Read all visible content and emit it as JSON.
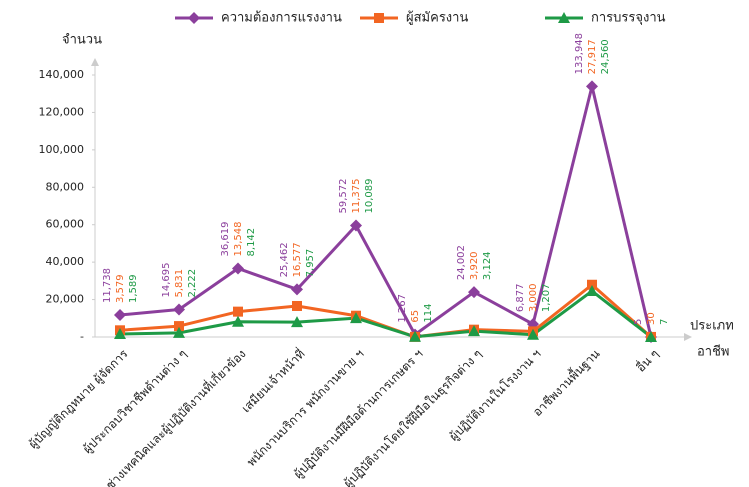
{
  "chart_data": {
    "type": "line",
    "y_label": "จำนวน",
    "x_label_lines": [
      "ประเภท",
      "อาชีพ"
    ],
    "categories": [
      "ผู้บัญญัติกฎหมาย ผู้จัดการ",
      "ผู้ประกอบวิชาชีพด้านต่าง ๆ",
      "ช่างเทคนิคและผู้ปฏิบัติงานที่เกี่ยวข้อง",
      "เสมียนเจ้าหน้าที่",
      "พนักงานบริการ พนักงานขาย ฯ",
      "ผู้ปฏิบัติงานมีฝีมือด้านการเกษตร ฯ",
      "ผู้ปฏิบัติงานโดยใช้ฝีมือในธุรกิจต่าง ๆ",
      "ผู้ปฏิบัติงานในโรงงาน ฯ",
      "อาชีพงานพื้นฐาน",
      "อื่น ๆ"
    ],
    "series": [
      {
        "name": "ความต้องการแรงงาน",
        "color": "#8b3f9c",
        "marker": "diamond",
        "values": [
          11738,
          14695,
          36619,
          25462,
          59572,
          1267,
          24002,
          6877,
          133948,
          5
        ],
        "value_labels": [
          "11,738",
          "14,695",
          "36,619",
          "25,462",
          "59,572",
          "1,267",
          "24,002",
          "6,877",
          "133,948",
          "5"
        ]
      },
      {
        "name": "ผู้สมัครงาน",
        "color": "#f26522",
        "marker": "square",
        "values": [
          3579,
          5831,
          13548,
          16577,
          11375,
          65,
          3920,
          3000,
          27917,
          30
        ],
        "value_labels": [
          "3,579",
          "5,831",
          "13,548",
          "16,577",
          "11,375",
          "65",
          "3,920",
          "3,000",
          "27,917",
          "30"
        ]
      },
      {
        "name": "การบรรจุงาน",
        "color": "#1e9a46",
        "marker": "triangle",
        "values": [
          1589,
          2222,
          8142,
          7957,
          10089,
          114,
          3124,
          1207,
          24560,
          7
        ],
        "value_labels": [
          "1,589",
          "2,222",
          "8,142",
          "7,957",
          "10,089",
          "114",
          "3,124",
          "1,207",
          "24,560",
          "7"
        ]
      }
    ],
    "ylim": [
      0,
      140000
    ],
    "yticks": [
      {
        "value": 0,
        "label": "-"
      },
      {
        "value": 20000,
        "label": "20,000"
      },
      {
        "value": 40000,
        "label": "40,000"
      },
      {
        "value": 60000,
        "label": "60,000"
      },
      {
        "value": 80000,
        "label": "80,000"
      },
      {
        "value": 100000,
        "label": "100,000"
      },
      {
        "value": 120000,
        "label": "120,000"
      },
      {
        "value": 140000,
        "label": "140,000"
      }
    ],
    "grid": false
  }
}
